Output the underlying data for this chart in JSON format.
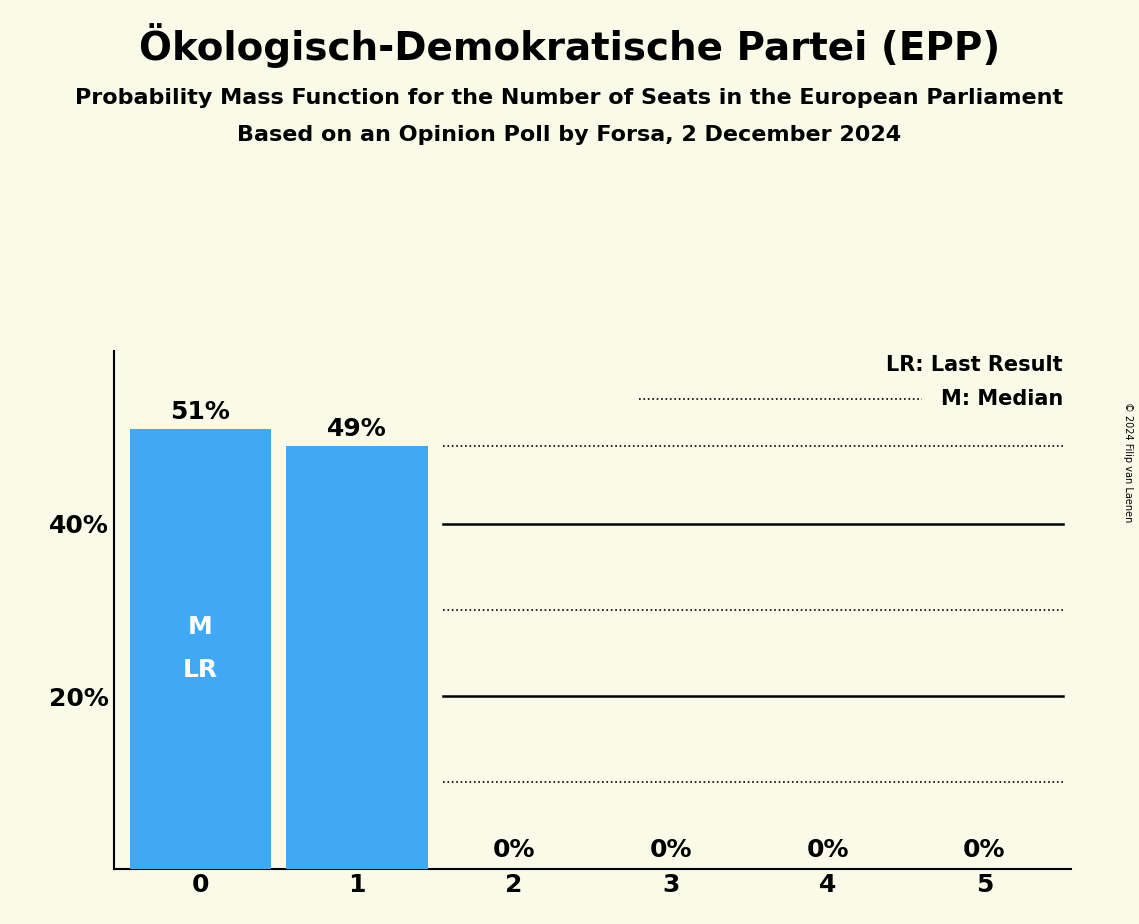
{
  "title": "Ökologisch-Demokratische Partei (EPP)",
  "subtitle1": "Probability Mass Function for the Number of Seats in the European Parliament",
  "subtitle2": "Based on an Opinion Poll by Forsa, 2 December 2024",
  "copyright": "© 2024 Filip van Laenen",
  "categories": [
    0,
    1,
    2,
    3,
    4,
    5
  ],
  "values": [
    0.51,
    0.49,
    0.0,
    0.0,
    0.0,
    0.0
  ],
  "bar_color": "#3FA9F5",
  "bar_labels": [
    "51%",
    "49%",
    "0%",
    "0%",
    "0%",
    "0%"
  ],
  "background_color": "#FAFAE8",
  "ylim": [
    0,
    0.6
  ],
  "yticks": [
    0.0,
    0.2,
    0.4
  ],
  "ytick_labels": [
    "",
    "20%",
    "40%"
  ],
  "median_value": 0,
  "last_result_value": 0,
  "median_label": "M",
  "lr_label": "LR",
  "solid_line_color": "#000000",
  "dotted_line_color": "#000000",
  "solid_line_y": [
    0.4,
    0.2
  ],
  "dotted_line_y": [
    0.49,
    0.3,
    0.1
  ],
  "legend_lr": "LR: Last Result",
  "legend_m": "M: Median",
  "title_fontsize": 28,
  "subtitle_fontsize": 16,
  "axis_tick_fontsize": 18,
  "bar_label_fontsize": 18,
  "in_bar_label_fontsize": 18,
  "legend_fontsize": 15
}
